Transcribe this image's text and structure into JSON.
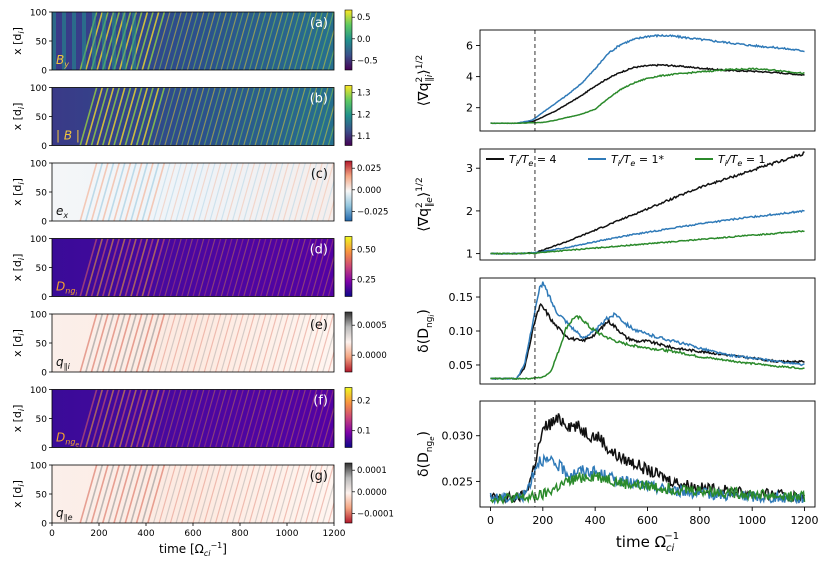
{
  "chart_data": [
    {
      "id": "left-stack",
      "type": "heatmap",
      "xlabel_main": "time",
      "xlabel_unit": "[Ω",
      "xlabel_sub": "ci",
      "xlabel_sup": "−1",
      "xlabel_close": "]",
      "xlim": [
        0,
        1200
      ],
      "xticks": [
        "0",
        "200",
        "400",
        "600",
        "800",
        "1000",
        "1200"
      ],
      "ylabel_main": "x",
      "ylabel_unit": "[d",
      "ylabel_sub": "i",
      "ylabel_close": "]",
      "ylim": [
        0,
        100
      ],
      "yticks": [
        "0",
        "50",
        "100"
      ],
      "panels": [
        {
          "tag": "(a)",
          "label_main": "B",
          "label_sub": "y",
          "colormap": "viridis",
          "cbar_ticks": [
            "0.5",
            "0.0",
            "−0.5"
          ],
          "label_color": "#f2c53d",
          "tag_color": "#ffffff"
        },
        {
          "tag": "(b)",
          "label_main": "| B |",
          "label_sub": "",
          "colormap": "viridis",
          "cbar_ticks": [
            "1.3",
            "1.2",
            "1.1"
          ],
          "label_color": "#f2c53d",
          "tag_color": "#ffffff"
        },
        {
          "tag": "(c)",
          "label_main": "e",
          "label_sub": "x",
          "colormap": "RdBu",
          "cbar_ticks": [
            "0.025",
            "0.000",
            "−0.025"
          ],
          "label_color": "#111111",
          "tag_color": "#111111"
        },
        {
          "tag": "(d)",
          "label_main": "D",
          "label_sub": "ng",
          "label_subsub": "i",
          "colormap": "plasma",
          "cbar_ticks": [
            "0.50",
            "0.25"
          ],
          "label_color": "#f2a030",
          "tag_color": "#ffffff"
        },
        {
          "tag": "(e)",
          "label_main": "q",
          "label_sub": "∥i",
          "colormap": "RdGy",
          "cbar_ticks": [
            "0.0005",
            "0.0000"
          ],
          "label_color": "#111111",
          "tag_color": "#111111"
        },
        {
          "tag": "(f)",
          "label_main": "D",
          "label_sub": "ng",
          "label_subsub": "e",
          "colormap": "plasma",
          "cbar_ticks": [
            "0.2",
            "0.1"
          ],
          "label_color": "#f2a030",
          "tag_color": "#ffffff"
        },
        {
          "tag": "(g)",
          "label_main": "q",
          "label_sub": "∥e",
          "colormap": "RdGy",
          "cbar_ticks": [
            "0.0001",
            "0.0000",
            "−0.0001"
          ],
          "label_color": "#111111",
          "tag_color": "#111111"
        }
      ]
    },
    {
      "id": "right-stack",
      "type": "line",
      "xlabel_main": "time Ω",
      "xlabel_sub": "ci",
      "xlabel_sup": "−1",
      "xlim": [
        -40,
        1240
      ],
      "xticks": [
        0,
        200,
        400,
        600,
        800,
        1000,
        1200
      ],
      "vline_x": 170,
      "legend": [
        {
          "name": "T",
          "sub1": "i",
          "mid": "/T",
          "sub2": "e",
          "tail": " = 4",
          "color": "#111111"
        },
        {
          "name": "T",
          "sub1": "i",
          "mid": "/T",
          "sub2": "e",
          "tail": " = 1*",
          "color": "#2f7ab8"
        },
        {
          "name": "T",
          "sub1": "i",
          "mid": "/T",
          "sub2": "e",
          "tail": " = 1",
          "color": "#2b8a2b"
        }
      ],
      "legend_position": "top",
      "panels": [
        {
          "ylabel": "⟨∇q²∥i⟩^1/2",
          "ylabel_parts": {
            "open": "⟨∇q",
            "sup": "2",
            "sub": "∥i",
            "close": "⟩",
            "pow": "1/2"
          },
          "ylim": [
            0.5,
            7
          ],
          "yticks": [
            2,
            4,
            6
          ],
          "tick_format": "int",
          "series": [
            {
              "name": "T_i/T_e = 4",
              "x": [
                0,
                100,
                160,
                200,
                250,
                300,
                350,
                400,
                450,
                500,
                550,
                600,
                650,
                700,
                800,
                900,
                1000,
                1100,
                1200
              ],
              "y": [
                1.0,
                1.0,
                1.1,
                1.4,
                1.8,
                2.3,
                2.8,
                3.4,
                3.9,
                4.3,
                4.6,
                4.7,
                4.75,
                4.7,
                4.55,
                4.4,
                4.35,
                4.25,
                4.1
              ]
            },
            {
              "name": "T_i/T_e = 1*",
              "x": [
                0,
                100,
                160,
                200,
                250,
                300,
                350,
                400,
                450,
                500,
                550,
                600,
                650,
                700,
                800,
                900,
                1000,
                1100,
                1200
              ],
              "y": [
                1.0,
                1.0,
                1.2,
                1.7,
                2.3,
                2.9,
                3.6,
                4.5,
                5.5,
                6.1,
                6.4,
                6.6,
                6.65,
                6.6,
                6.4,
                6.2,
                6.0,
                5.85,
                5.65
              ]
            },
            {
              "name": "T_i/T_e = 1",
              "x": [
                0,
                100,
                200,
                250,
                300,
                350,
                400,
                450,
                500,
                550,
                600,
                650,
                700,
                800,
                900,
                1000,
                1100,
                1200
              ],
              "y": [
                1.0,
                1.0,
                1.05,
                1.2,
                1.4,
                1.6,
                1.9,
                2.6,
                3.2,
                3.6,
                3.9,
                4.05,
                4.15,
                4.3,
                4.45,
                4.5,
                4.4,
                4.2
              ]
            }
          ]
        },
        {
          "ylabel": "⟨∇q²∥e⟩^1/2",
          "ylabel_parts": {
            "open": "⟨∇q",
            "sup": "2",
            "sub": "∥e",
            "close": "⟩",
            "pow": "1/2"
          },
          "ylim": [
            0.85,
            3.45
          ],
          "yticks": [
            1,
            2,
            3
          ],
          "tick_format": "int",
          "series": [
            {
              "name": "T_i/T_e = 4",
              "x": [
                0,
                100,
                170,
                200,
                300,
                400,
                500,
                600,
                700,
                800,
                900,
                1000,
                1100,
                1200
              ],
              "y": [
                1.0,
                1.0,
                1.02,
                1.08,
                1.3,
                1.55,
                1.8,
                2.05,
                2.3,
                2.55,
                2.75,
                2.95,
                3.15,
                3.35
              ]
            },
            {
              "name": "T_i/T_e = 1*",
              "x": [
                0,
                100,
                170,
                200,
                300,
                400,
                500,
                600,
                700,
                800,
                900,
                1000,
                1100,
                1200
              ],
              "y": [
                1.0,
                1.0,
                1.02,
                1.05,
                1.15,
                1.28,
                1.4,
                1.5,
                1.6,
                1.7,
                1.78,
                1.86,
                1.93,
                2.0
              ]
            },
            {
              "name": "T_i/T_e = 1",
              "x": [
                0,
                100,
                170,
                200,
                300,
                400,
                500,
                600,
                700,
                800,
                900,
                1000,
                1100,
                1200
              ],
              "y": [
                1.0,
                1.0,
                1.01,
                1.03,
                1.08,
                1.13,
                1.18,
                1.23,
                1.28,
                1.33,
                1.38,
                1.43,
                1.48,
                1.53
              ]
            }
          ]
        },
        {
          "ylabel": "δ(D_ngi)",
          "ylabel_parts": {
            "open": "δ(D",
            "sub": "ng",
            "subsub": "i",
            "close": ")"
          },
          "ylim": [
            0.022,
            0.178
          ],
          "yticks": [
            0.05,
            0.1,
            0.15
          ],
          "tick_format": "f2",
          "series": [
            {
              "name": "T_i/T_e = 4",
              "x": [
                0,
                100,
                130,
                150,
                170,
                190,
                210,
                240,
                270,
                300,
                350,
                400,
                450,
                480,
                520,
                560,
                600,
                700,
                800,
                900,
                1000,
                1100,
                1200
              ],
              "y": [
                0.03,
                0.03,
                0.045,
                0.08,
                0.115,
                0.138,
                0.13,
                0.112,
                0.1,
                0.09,
                0.085,
                0.095,
                0.115,
                0.105,
                0.09,
                0.085,
                0.085,
                0.075,
                0.07,
                0.065,
                0.06,
                0.055,
                0.055
              ]
            },
            {
              "name": "T_i/T_e = 1*",
              "x": [
                0,
                100,
                130,
                150,
                170,
                190,
                200,
                220,
                250,
                300,
                350,
                400,
                450,
                480,
                520,
                560,
                600,
                700,
                800,
                900,
                1000,
                1100,
                1200
              ],
              "y": [
                0.03,
                0.03,
                0.05,
                0.09,
                0.13,
                0.165,
                0.17,
                0.155,
                0.13,
                0.11,
                0.09,
                0.1,
                0.12,
                0.125,
                0.11,
                0.1,
                0.095,
                0.085,
                0.075,
                0.065,
                0.06,
                0.055,
                0.05
              ]
            },
            {
              "name": "T_i/T_e = 1",
              "x": [
                0,
                100,
                150,
                200,
                230,
                260,
                290,
                320,
                350,
                380,
                420,
                460,
                500,
                600,
                700,
                800,
                900,
                1000,
                1100,
                1200
              ],
              "y": [
                0.03,
                0.03,
                0.03,
                0.032,
                0.04,
                0.07,
                0.105,
                0.12,
                0.118,
                0.105,
                0.095,
                0.088,
                0.082,
                0.075,
                0.07,
                0.062,
                0.057,
                0.052,
                0.048,
                0.045
              ]
            }
          ]
        },
        {
          "ylabel": "δ(D_nge)",
          "ylabel_parts": {
            "open": "δ(D",
            "sub": "ng",
            "subsub": "e",
            "close": ")"
          },
          "ylim": [
            0.0222,
            0.0338
          ],
          "yticks": [
            0.025,
            0.03
          ],
          "tick_format": "f3",
          "series": [
            {
              "name": "T_i/T_e = 4",
              "x": [
                0,
                100,
                130,
                150,
                170,
                190,
                210,
                240,
                270,
                300,
                330,
                360,
                390,
                420,
                450,
                500,
                550,
                600,
                700,
                800,
                900,
                1000,
                1100,
                1200
              ],
              "y": [
                0.0232,
                0.0232,
                0.0235,
                0.025,
                0.027,
                0.0295,
                0.031,
                0.0315,
                0.0318,
                0.0312,
                0.031,
                0.0305,
                0.03,
                0.0298,
                0.0285,
                0.0275,
                0.027,
                0.0262,
                0.025,
                0.0243,
                0.024,
                0.0237,
                0.0235,
                0.0233
              ]
            },
            {
              "name": "T_i/T_e = 1*",
              "x": [
                0,
                100,
                130,
                150,
                170,
                190,
                210,
                240,
                270,
                300,
                350,
                400,
                450,
                500,
                600,
                700,
                800,
                900,
                1000,
                1100,
                1200
              ],
              "y": [
                0.0232,
                0.0232,
                0.0235,
                0.0248,
                0.0265,
                0.0275,
                0.0272,
                0.027,
                0.0265,
                0.0258,
                0.0262,
                0.026,
                0.0255,
                0.025,
                0.0245,
                0.024,
                0.0237,
                0.0235,
                0.0233,
                0.0232,
                0.0232
              ]
            },
            {
              "name": "T_i/T_e = 1",
              "x": [
                0,
                100,
                150,
                200,
                250,
                300,
                350,
                400,
                450,
                500,
                600,
                700,
                800,
                900,
                1000,
                1100,
                1200
              ],
              "y": [
                0.0232,
                0.0232,
                0.0232,
                0.0235,
                0.0243,
                0.025,
                0.0255,
                0.0256,
                0.0253,
                0.0248,
                0.0245,
                0.0242,
                0.024,
                0.0238,
                0.0236,
                0.0234,
                0.0233
              ]
            }
          ]
        }
      ]
    }
  ]
}
